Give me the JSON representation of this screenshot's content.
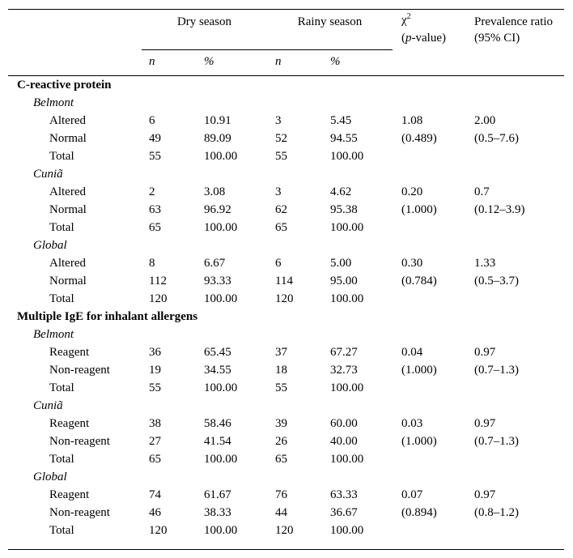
{
  "header": {
    "groups": [
      "Dry season",
      "Rainy season"
    ],
    "chi": {
      "symbol": "χ",
      "sup": "2",
      "open": "(",
      "italic": "p",
      "rest": "-value)"
    },
    "pr": [
      "Prevalence ratio",
      "(95% CI)"
    ],
    "sub": [
      "n",
      "%",
      "n",
      "%"
    ]
  },
  "sections": [
    {
      "title": "C-reactive protein",
      "groups": [
        {
          "name": "Belmont",
          "rows": [
            [
              "Altered",
              "6",
              "10.91",
              "3",
              "5.45",
              "1.08",
              "2.00"
            ],
            [
              "Normal",
              "49",
              "89.09",
              "52",
              "94.55",
              "(0.489)",
              "(0.5–7.6)"
            ],
            [
              "Total",
              "55",
              "100.00",
              "55",
              "100.00"
            ]
          ]
        },
        {
          "name": "Cuniã",
          "rows": [
            [
              "Altered",
              "2",
              "3.08",
              "3",
              "4.62",
              "0.20",
              "0.7"
            ],
            [
              "Normal",
              "63",
              "96.92",
              "62",
              "95.38",
              "(1.000)",
              "(0.12–3.9)"
            ],
            [
              "Total",
              "65",
              "100.00",
              "65",
              "100.00"
            ]
          ]
        },
        {
          "name": "Global",
          "rows": [
            [
              "Altered",
              "8",
              "6.67",
              "6",
              "5.00",
              "0.30",
              "1.33"
            ],
            [
              "Normal",
              "112",
              "93.33",
              "114",
              "95.00",
              "(0.784)",
              "(0.5–3.7)"
            ],
            [
              "Total",
              "120",
              "100.00",
              "120",
              "100.00"
            ]
          ]
        }
      ]
    },
    {
      "title": "Multiple IgE for inhalant allergens",
      "groups": [
        {
          "name": "Belmont",
          "rows": [
            [
              "Reagent",
              "36",
              "65.45",
              "37",
              "67.27",
              "0.04",
              "0.97"
            ],
            [
              "Non-reagent",
              "19",
              "34.55",
              "18",
              "32.73",
              "(1.000)",
              "(0.7–1.3)"
            ],
            [
              "Total",
              "55",
              "100.00",
              "55",
              "100.00"
            ]
          ]
        },
        {
          "name": "Cuniã",
          "rows": [
            [
              "Reagent",
              "38",
              "58.46",
              "39",
              "60.00",
              "0.03",
              "0.97"
            ],
            [
              "Non-reagent",
              "27",
              "41.54",
              "26",
              "40.00",
              "(1.000)",
              "(0.7–1.3)"
            ],
            [
              "Total",
              "65",
              "100.00",
              "65",
              "100.00"
            ]
          ]
        },
        {
          "name": "Global",
          "rows": [
            [
              "Reagent",
              "74",
              "61.67",
              "76",
              "63.33",
              "0.07",
              "0.97"
            ],
            [
              "Non-reagent",
              "46",
              "38.33",
              "44",
              "36.67",
              "(0.894)",
              "(0.8–1.2)"
            ],
            [
              "Total",
              "120",
              "100.00",
              "120",
              "100.00"
            ]
          ]
        }
      ]
    }
  ]
}
